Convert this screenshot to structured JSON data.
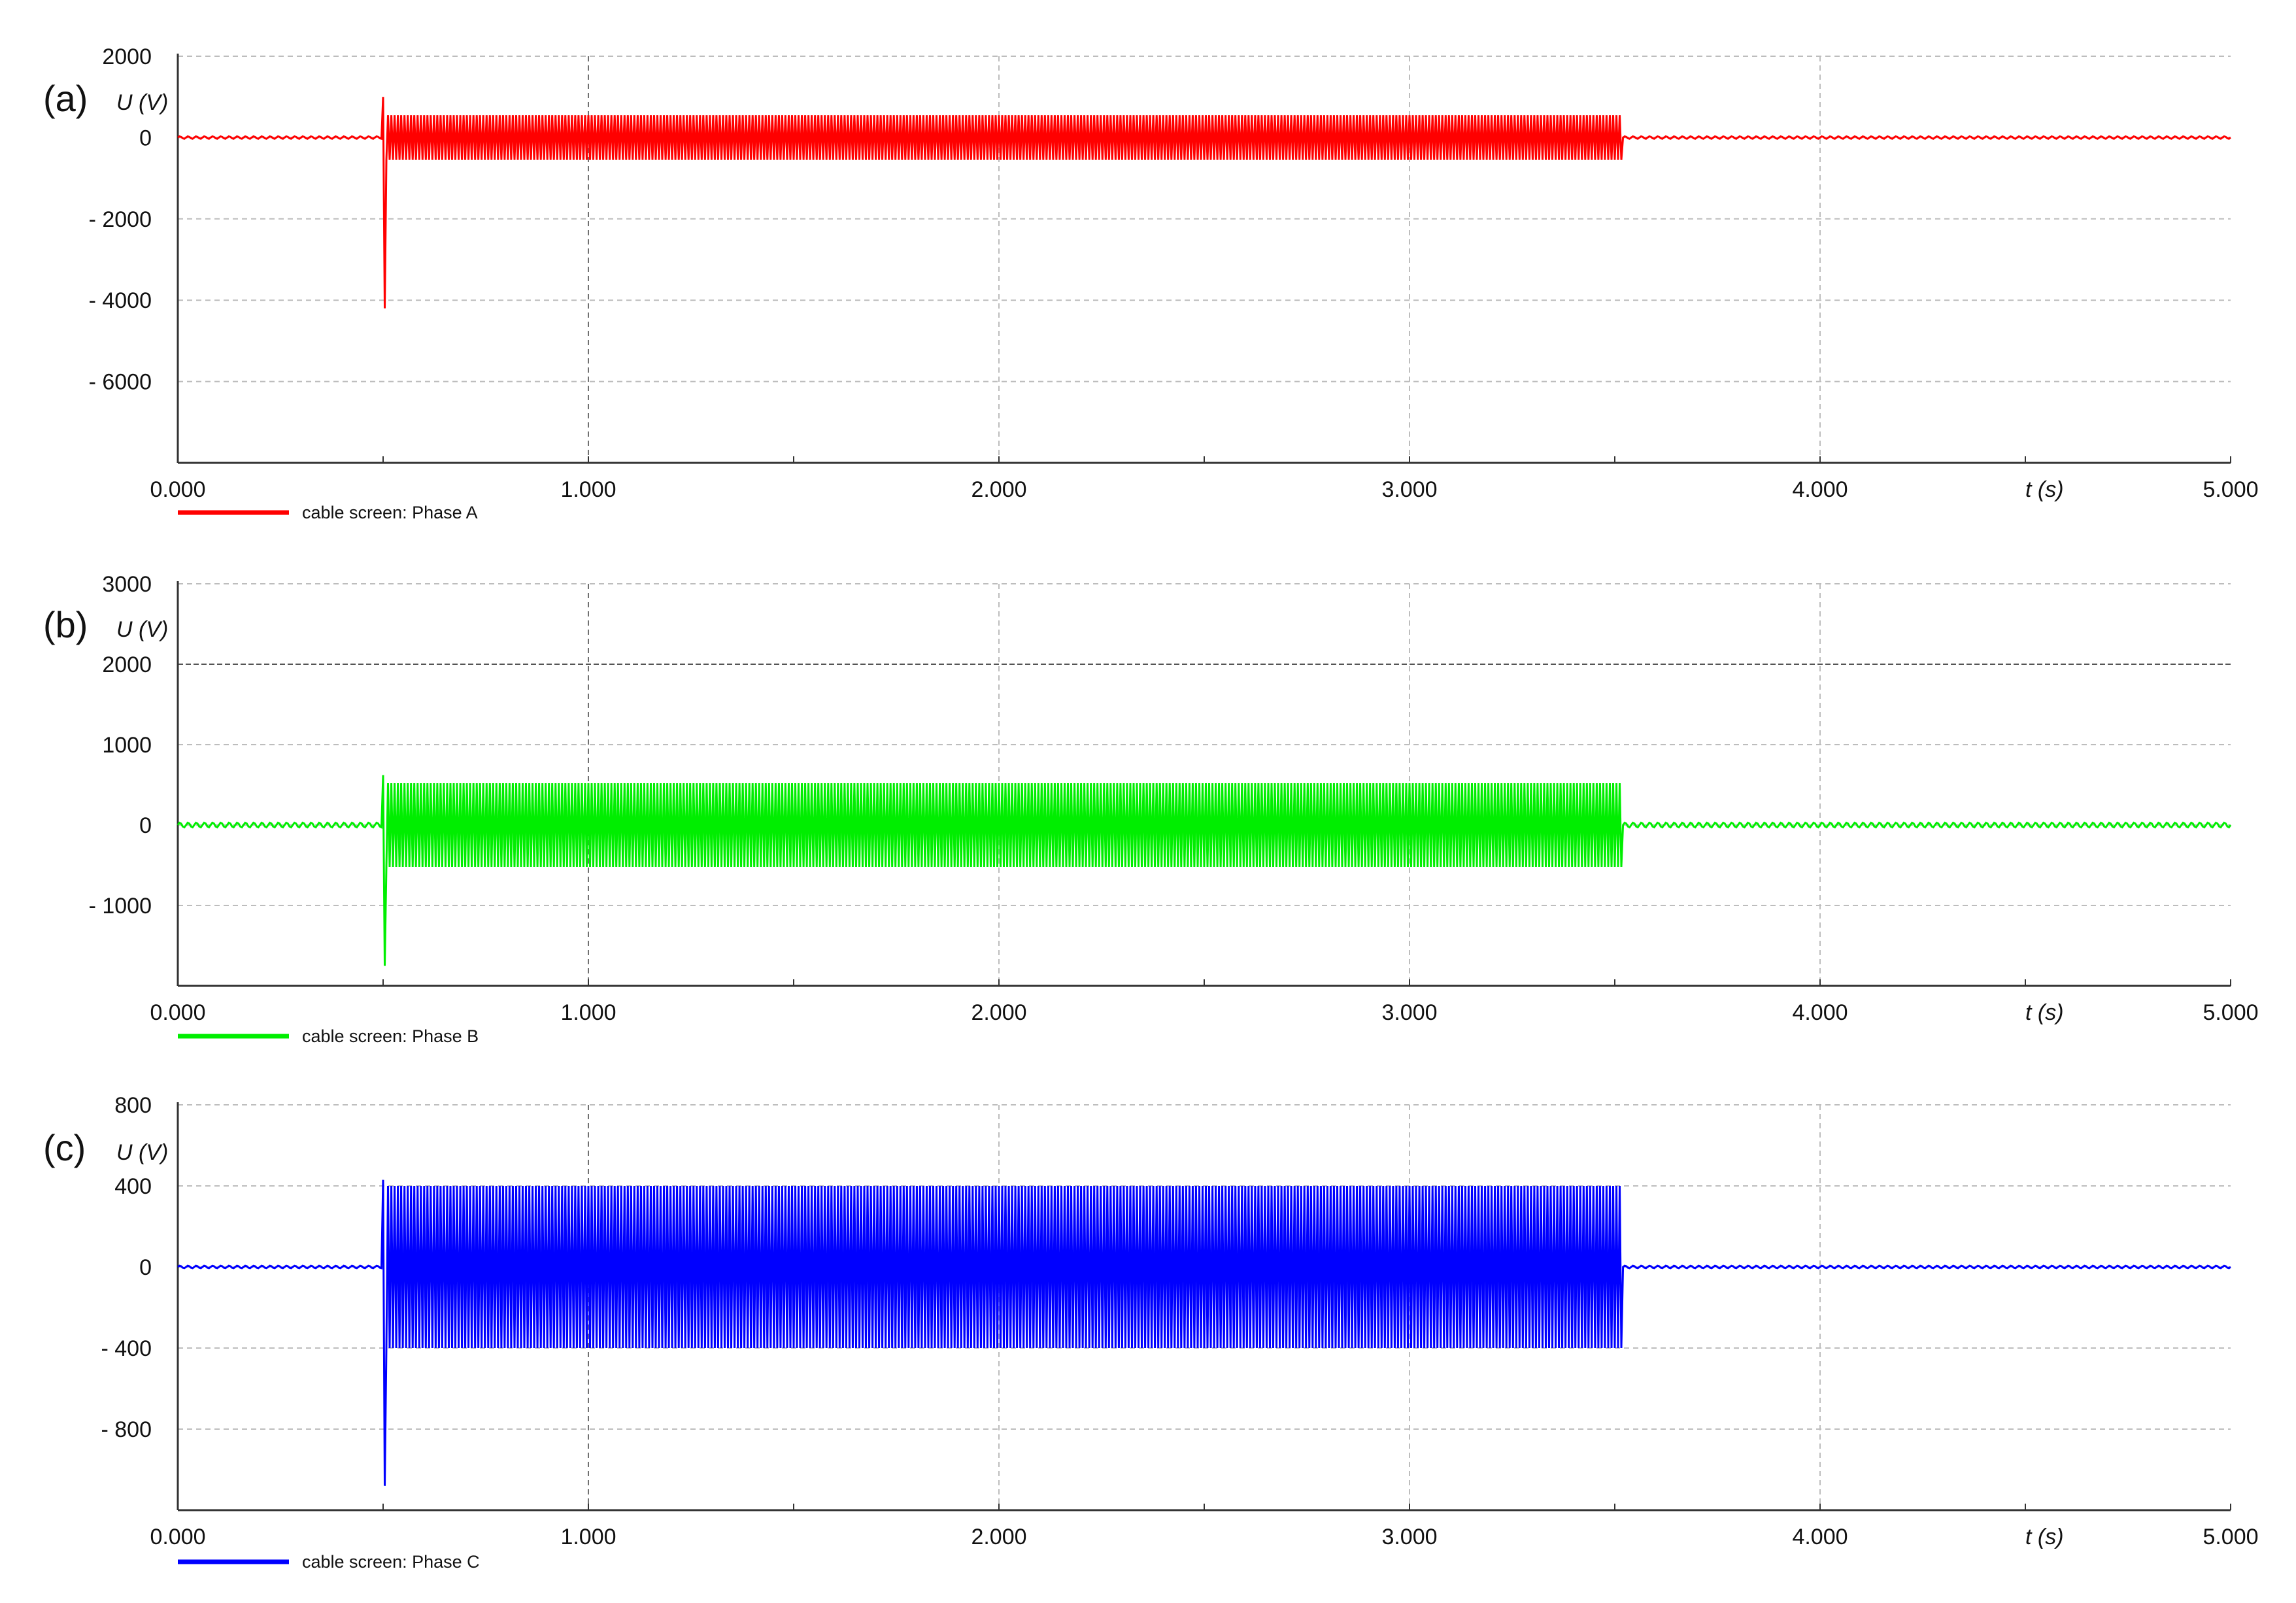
{
  "chart_data": [
    {
      "type": "line",
      "panel_label": "(a)",
      "ylabel": "U (V)",
      "xlabel": "t (s)",
      "xlim": [
        0,
        5
      ],
      "ylim": [
        -8000,
        2000
      ],
      "y_ticks": [
        2000,
        0,
        -2000,
        -4000,
        -6000
      ],
      "y_tick_labels": [
        "2000",
        "0",
        "- 2000",
        "- 4000",
        "- 6000"
      ],
      "x_ticks": [
        0,
        1,
        2,
        3,
        4,
        5
      ],
      "x_tick_labels": [
        "0.000",
        "1.000",
        "2.000",
        "3.000",
        "4.000",
        "5.000"
      ],
      "grid": true,
      "legend_position": "bottom-left",
      "series": [
        {
          "name": "cable screen: Phase A",
          "color": "#ff0000",
          "baseline_amplitude": 30,
          "event_start": 0.5,
          "event_end": 3.52,
          "event_amplitude": 550,
          "transient_peak": 1000,
          "transient_min": -4200
        }
      ]
    },
    {
      "type": "line",
      "panel_label": "(b)",
      "ylabel": "U (V)",
      "xlabel": "t (s)",
      "xlim": [
        0,
        5
      ],
      "ylim": [
        -2000,
        3000
      ],
      "y_ticks": [
        3000,
        2000,
        1000,
        0,
        -1000
      ],
      "y_tick_labels": [
        "3000",
        "2000",
        "1000",
        "0",
        "- 1000"
      ],
      "x_ticks": [
        0,
        1,
        2,
        3,
        4,
        5
      ],
      "x_tick_labels": [
        "0.000",
        "1.000",
        "2.000",
        "3.000",
        "4.000",
        "5.000"
      ],
      "grid": true,
      "legend_position": "bottom-left",
      "series": [
        {
          "name": "cable screen: Phase B",
          "color": "#00ee00",
          "baseline_amplitude": 30,
          "event_start": 0.5,
          "event_end": 3.52,
          "event_amplitude": 520,
          "transient_peak": 620,
          "transient_min": -1750
        }
      ]
    },
    {
      "type": "line",
      "panel_label": "(c)",
      "ylabel": "U (V)",
      "xlabel": "t (s)",
      "xlim": [
        0,
        5
      ],
      "ylim": [
        -1200,
        800
      ],
      "y_ticks": [
        800,
        400,
        0,
        -400,
        -800
      ],
      "y_tick_labels": [
        "800",
        "400",
        "0",
        "- 400",
        "- 800"
      ],
      "x_ticks": [
        0,
        1,
        2,
        3,
        4,
        5
      ],
      "x_tick_labels": [
        "0.000",
        "1.000",
        "2.000",
        "3.000",
        "4.000",
        "5.000"
      ],
      "grid": true,
      "legend_position": "bottom-left",
      "series": [
        {
          "name": "cable screen: Phase C",
          "color": "#0000ff",
          "baseline_amplitude": 6,
          "event_start": 0.5,
          "event_end": 3.52,
          "event_amplitude": 400,
          "transient_peak": 430,
          "transient_min": -1080
        }
      ]
    }
  ]
}
